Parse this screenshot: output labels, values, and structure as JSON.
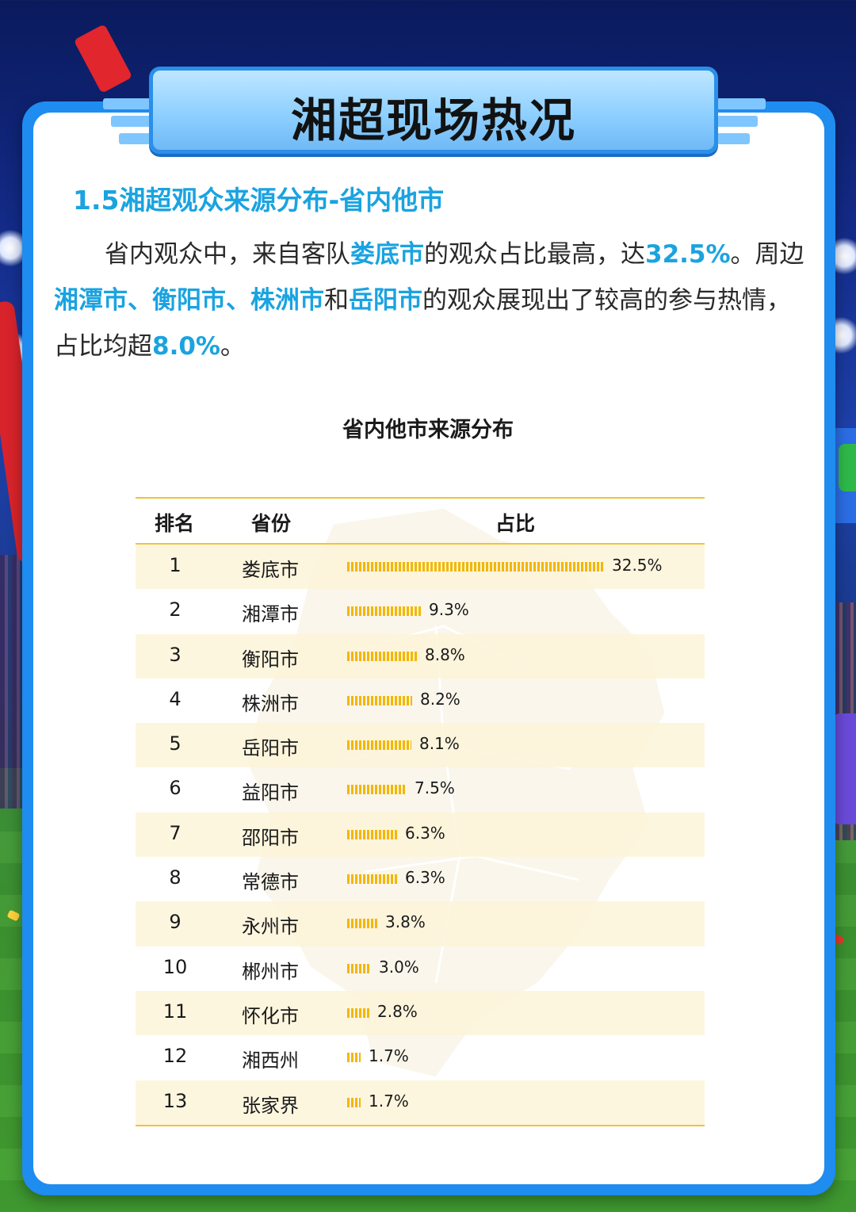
{
  "page": {
    "title": "湘超现场热况",
    "section_title": "1.5湘超观众来源分布-省内他市",
    "paragraph": [
      {
        "t": "省内观众中，来自客队",
        "hl": false
      },
      {
        "t": "娄底市",
        "hl": true
      },
      {
        "t": "的观众占比最高，达",
        "hl": false
      },
      {
        "t": "32.5%",
        "hl": true
      },
      {
        "t": "。周边",
        "hl": false
      },
      {
        "t": "湘潭市、衡阳市、株洲市",
        "hl": true
      },
      {
        "t": "和",
        "hl": false
      },
      {
        "t": "岳阳市",
        "hl": true
      },
      {
        "t": "的观众展现出了较高的参与热情，占比均超",
        "hl": false
      },
      {
        "t": "8.0%",
        "hl": true
      },
      {
        "t": "。",
        "hl": false
      }
    ]
  },
  "chart_data": {
    "type": "table",
    "title": "省内他市来源分布",
    "columns": [
      "排名",
      "省份",
      "占比"
    ],
    "rows": [
      {
        "rank": "1",
        "city": "娄底市",
        "value": 32.5,
        "label": "32.5%"
      },
      {
        "rank": "2",
        "city": "湘潭市",
        "value": 9.3,
        "label": "9.3%"
      },
      {
        "rank": "3",
        "city": "衡阳市",
        "value": 8.8,
        "label": "8.8%"
      },
      {
        "rank": "4",
        "city": "株洲市",
        "value": 8.2,
        "label": "8.2%"
      },
      {
        "rank": "5",
        "city": "岳阳市",
        "value": 8.1,
        "label": "8.1%"
      },
      {
        "rank": "6",
        "city": "益阳市",
        "value": 7.5,
        "label": "7.5%"
      },
      {
        "rank": "7",
        "city": "邵阳市",
        "value": 6.3,
        "label": "6.3%"
      },
      {
        "rank": "8",
        "city": "常德市",
        "value": 6.3,
        "label": "6.3%"
      },
      {
        "rank": "9",
        "city": "永州市",
        "value": 3.8,
        "label": "3.8%"
      },
      {
        "rank": "10",
        "city": "郴州市",
        "value": 3.0,
        "label": "3.0%"
      },
      {
        "rank": "11",
        "city": "怀化市",
        "value": 2.8,
        "label": "2.8%"
      },
      {
        "rank": "12",
        "city": "湘西州",
        "value": 1.7,
        "label": "1.7%"
      },
      {
        "rank": "13",
        "city": "张家界",
        "value": 1.7,
        "label": "1.7%"
      }
    ],
    "bar_color": "#f2b705",
    "accent_color": "#1aa3e0",
    "rule_color": "#f1c33a"
  }
}
